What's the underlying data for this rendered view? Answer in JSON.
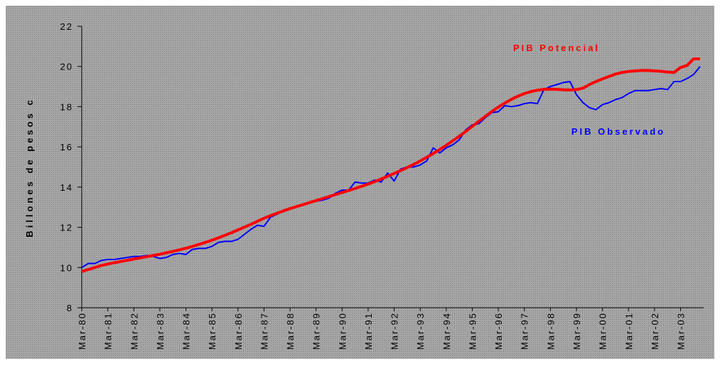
{
  "chart_data": {
    "type": "line",
    "y_label": "Billones de pesos c",
    "categories": [
      "Mar-80",
      null,
      null,
      null,
      "Mar-81",
      null,
      null,
      null,
      "Mar-82",
      null,
      null,
      null,
      "Mar-83",
      null,
      null,
      null,
      "Mar-84",
      null,
      null,
      null,
      "Mar-85",
      null,
      null,
      null,
      "Mar-86",
      null,
      null,
      null,
      "Mar-87",
      null,
      null,
      null,
      "Mar-88",
      null,
      null,
      null,
      "Mar-89",
      null,
      null,
      null,
      "Mar-90",
      null,
      null,
      null,
      "Mar-91",
      null,
      null,
      null,
      "Mar-92",
      null,
      null,
      null,
      "Mar-93",
      null,
      null,
      null,
      "Mar-94",
      null,
      null,
      null,
      "Mar-95",
      null,
      null,
      null,
      "Mar-96",
      null,
      null,
      null,
      "Mar-97",
      null,
      null,
      null,
      "Mar-98",
      null,
      null,
      null,
      "Mar-99",
      null,
      null,
      null,
      "Mar-00",
      null,
      null,
      null,
      "Mar-01",
      null,
      null,
      null,
      "Mar-02",
      null,
      null,
      null,
      "Mar-03",
      null,
      null,
      null
    ],
    "series": [
      {
        "name": "PIB Observado",
        "color": "#0000ff",
        "values": [
          10.0,
          10.2,
          10.2,
          10.35,
          10.4,
          10.4,
          10.45,
          10.5,
          10.55,
          10.55,
          10.6,
          10.55,
          10.45,
          10.5,
          10.65,
          10.7,
          10.65,
          10.9,
          10.95,
          10.95,
          11.05,
          11.25,
          11.3,
          11.3,
          11.4,
          11.65,
          11.9,
          12.1,
          12.05,
          12.5,
          12.65,
          12.8,
          12.9,
          13.05,
          13.15,
          13.25,
          13.3,
          13.35,
          13.45,
          13.7,
          13.85,
          13.85,
          14.25,
          14.2,
          14.2,
          14.35,
          14.25,
          14.7,
          14.3,
          14.9,
          15.0,
          15.0,
          15.1,
          15.3,
          15.95,
          15.7,
          15.95,
          16.1,
          16.35,
          16.85,
          17.1,
          17.15,
          17.45,
          17.7,
          17.75,
          18.05,
          18.0,
          18.05,
          18.15,
          18.2,
          18.15,
          18.85,
          19.0,
          19.1,
          19.2,
          19.25,
          18.6,
          18.2,
          17.95,
          17.85,
          18.1,
          18.2,
          18.35,
          18.45,
          18.65,
          18.8,
          18.8,
          18.8,
          18.85,
          18.9,
          18.85,
          19.25,
          19.25,
          19.4,
          19.6,
          20.0
        ]
      },
      {
        "name": "PIB Potencial",
        "color": "#ff0000",
        "values": [
          9.8,
          9.9,
          10.0,
          10.1,
          10.17,
          10.24,
          10.3,
          10.36,
          10.42,
          10.48,
          10.54,
          10.6,
          10.66,
          10.73,
          10.8,
          10.88,
          10.96,
          11.05,
          11.15,
          11.25,
          11.36,
          11.48,
          11.6,
          11.73,
          11.87,
          12.01,
          12.15,
          12.3,
          12.45,
          12.58,
          12.7,
          12.82,
          12.93,
          13.03,
          13.13,
          13.23,
          13.33,
          13.43,
          13.53,
          13.63,
          13.73,
          13.83,
          13.93,
          14.04,
          14.15,
          14.27,
          14.4,
          14.54,
          14.68,
          14.82,
          14.97,
          15.13,
          15.3,
          15.48,
          15.67,
          15.87,
          16.08,
          16.3,
          16.53,
          16.77,
          17.02,
          17.27,
          17.52,
          17.76,
          17.98,
          18.18,
          18.36,
          18.52,
          18.65,
          18.75,
          18.82,
          18.86,
          18.87,
          18.86,
          18.84,
          18.83,
          18.85,
          18.92,
          19.1,
          19.25,
          19.38,
          19.5,
          19.62,
          19.7,
          19.75,
          19.78,
          19.8,
          19.8,
          19.78,
          19.76,
          19.72,
          19.7,
          19.95,
          20.05,
          20.38,
          20.38
        ]
      }
    ],
    "ylim": [
      8,
      22
    ],
    "yticks": [
      8,
      10,
      12,
      14,
      16,
      18,
      20,
      22
    ]
  }
}
